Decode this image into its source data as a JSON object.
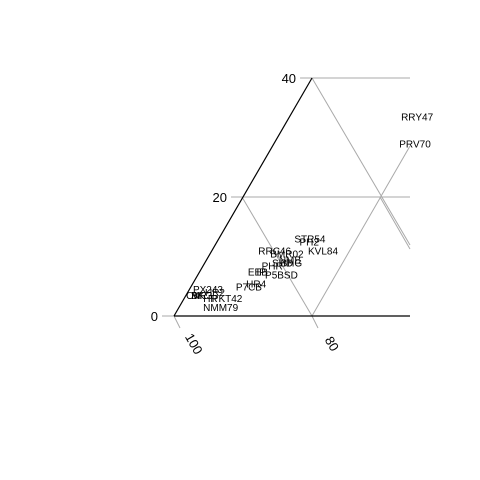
{
  "chart_data": {
    "type": "scatter",
    "title": "",
    "grid": true,
    "axes": {
      "left": {
        "ticks": [
          {
            "value": 0,
            "label": "0"
          },
          {
            "value": 20,
            "label": "20"
          },
          {
            "value": 40,
            "label": "40"
          }
        ]
      },
      "bottom": {
        "ticks": [
          {
            "value": 100,
            "label": "100"
          },
          {
            "value": 80,
            "label": "80"
          }
        ]
      }
    },
    "points": [
      {
        "label": "RRY47",
        "x": 32.5,
        "y": 33.5
      },
      {
        "label": "PRV70",
        "x": 36.5,
        "y": 29
      },
      {
        "label": "STR54",
        "x": 22,
        "y": 13
      },
      {
        "label": "PH2",
        "x": 24,
        "y": 12.5
      },
      {
        "label": "KVL84",
        "x": 28,
        "y": 11
      },
      {
        "label": "RRC46",
        "x": 13.5,
        "y": 11
      },
      {
        "label": "BMR02",
        "x": 17.5,
        "y": 10.5
      },
      {
        "label": "NMB",
        "x": 21,
        "y": 9.5
      },
      {
        "label": "SHD",
        "x": 19.5,
        "y": 9
      },
      {
        "label": "BHG",
        "x": 22,
        "y": 9
      },
      {
        "label": "PHR",
        "x": 17,
        "y": 8.5
      },
      {
        "label": "EEB",
        "x": 14,
        "y": 7.5
      },
      {
        "label": "IP",
        "x": 16.5,
        "y": 7.5
      },
      {
        "label": "P5BSD",
        "x": 19.5,
        "y": 7
      },
      {
        "label": "HR4",
        "x": 15.5,
        "y": 5.5
      },
      {
        "label": "P7CB",
        "x": 13,
        "y": 5
      },
      {
        "label": "PX243",
        "x": 1,
        "y": 4.5
      },
      {
        "label": "OM",
        "x": 0,
        "y": 3.5
      },
      {
        "label": "BK",
        "x": 1.5,
        "y": 3.5
      },
      {
        "label": "MR3",
        "x": 1.5,
        "y": 3.5
      },
      {
        "label": "HR2",
        "x": 5,
        "y": 4
      },
      {
        "label": "HR",
        "x": 5.5,
        "y": 3
      },
      {
        "label": "PKT42",
        "x": 8,
        "y": 3
      },
      {
        "label": "NMM79",
        "x": 7,
        "y": 1.5
      }
    ]
  }
}
